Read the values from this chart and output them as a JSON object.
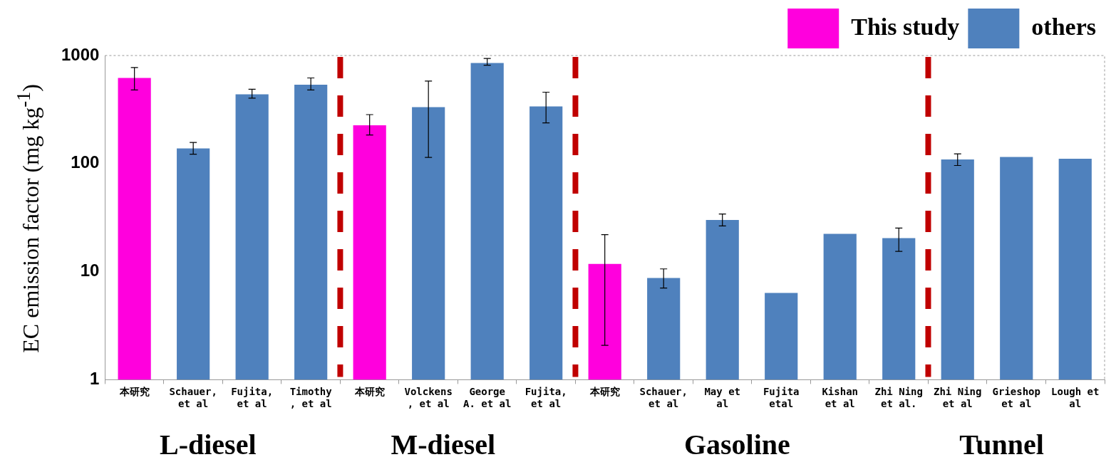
{
  "chart_data": {
    "type": "bar",
    "ylabel": "EC emission factor (mg kg$^{-1}$)",
    "categories": [
      "本研究",
      "Schauer,\net al",
      "Fujita,\net al",
      "Timothy\n, et al",
      "本研究",
      "Volckens\n, et al",
      "George\nA. et al",
      "Fujita,\net al",
      "本研究",
      "Schauer,\net al",
      "May et\nal",
      "Fujita\netal",
      "Kishan\net al",
      "Zhi Ning\net al.",
      "Zhi Ning\net al",
      "Grieshop\net al",
      "Lough et\nal"
    ],
    "series": [
      {
        "name": "This study",
        "color": "#ff00dd",
        "values": [
          620,
          null,
          null,
          null,
          226,
          null,
          null,
          null,
          11.8,
          null,
          null,
          null,
          null,
          null,
          null,
          null,
          null
        ],
        "errors": [
          [
            480,
            774
          ],
          null,
          null,
          null,
          [
            184,
            284
          ],
          null,
          null,
          null,
          [
            2.08,
            22
          ],
          null,
          null,
          null,
          null,
          null,
          null,
          null,
          null
        ]
      },
      {
        "name": "others",
        "color": "#4f81bd",
        "values": [
          null,
          138,
          437,
          537,
          null,
          333,
          853,
          338,
          null,
          8.75,
          30.1,
          6.35,
          22.4,
          20.4,
          109,
          115,
          111
        ],
        "errors": [
          null,
          [
            122,
            157
          ],
          [
            403,
            488
          ],
          [
            480,
            620
          ],
          null,
          [
            114,
            580
          ],
          [
            813,
            938
          ],
          [
            238,
            458
          ],
          null,
          [
            7.05,
            10.6
          ],
          [
            26.5,
            34.2
          ],
          null,
          null,
          [
            15.4,
            25.3
          ],
          [
            96,
            123
          ],
          null,
          null
        ]
      }
    ],
    "log": "y",
    "ylim": [
      1,
      1000
    ],
    "yticks": [
      1,
      10,
      100,
      1000
    ],
    "grid": false,
    "legend": "top",
    "annotations": [
      "L-diesel",
      "M-diesel",
      "Gasoline",
      "Tunnel"
    ]
  }
}
